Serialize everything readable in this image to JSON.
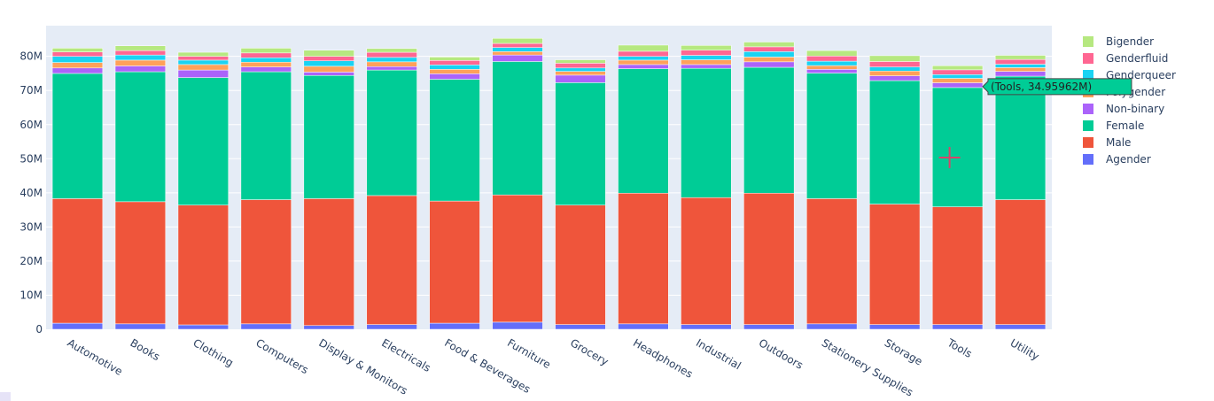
{
  "chart_data": {
    "type": "bar",
    "barmode": "stack",
    "title": "",
    "xlabel": "",
    "ylabel": "",
    "ylim": [
      0,
      89000000
    ],
    "y_ticks": [
      {
        "value": 0,
        "label": "0"
      },
      {
        "value": 10000000,
        "label": "10M"
      },
      {
        "value": 20000000,
        "label": "20M"
      },
      {
        "value": 30000000,
        "label": "30M"
      },
      {
        "value": 40000000,
        "label": "40M"
      },
      {
        "value": 50000000,
        "label": "50M"
      },
      {
        "value": 60000000,
        "label": "60M"
      },
      {
        "value": 70000000,
        "label": "70M"
      },
      {
        "value": 80000000,
        "label": "80M"
      }
    ],
    "categories": [
      "Automotive",
      "Books",
      "Clothing",
      "Computers",
      "Display & Monitors",
      "Electricals",
      "Food & Beverages",
      "Furniture",
      "Grocery",
      "Headphones",
      "Industrial",
      "Outdoors",
      "Stationery Supplies",
      "Storage",
      "Tools",
      "Utility"
    ],
    "series": [
      {
        "name": "Agender",
        "color": "#636efa",
        "values": [
          1800000,
          1600000,
          1300000,
          1600000,
          1100000,
          1400000,
          1800000,
          2100000,
          1400000,
          1600000,
          1400000,
          1400000,
          1600000,
          1400000,
          1400000,
          1400000
        ]
      },
      {
        "name": "Male",
        "color": "#ef553b",
        "values": [
          36500000,
          35800000,
          35100000,
          36400000,
          37200000,
          37800000,
          35800000,
          37300000,
          35000000,
          38300000,
          37200000,
          38500000,
          36700000,
          35300000,
          34500000,
          36600000
        ]
      },
      {
        "name": "Female",
        "color": "#00cc96",
        "values": [
          36700000,
          38100000,
          37400000,
          37500000,
          36100000,
          36800000,
          35700000,
          39100000,
          35900000,
          36500000,
          37900000,
          36900000,
          36800000,
          36200000,
          34959620,
          36200000
        ]
      },
      {
        "name": "Non-binary",
        "color": "#ab63fa",
        "values": [
          1600000,
          1700000,
          2200000,
          1400000,
          1000000,
          1000000,
          1600000,
          1900000,
          2200000,
          1200000,
          1100000,
          1600000,
          1100000,
          1400000,
          1400000,
          1400000
        ]
      },
      {
        "name": "Polygender",
        "color": "#ffa15a",
        "values": [
          1600000,
          1700000,
          1600000,
          1400000,
          1700000,
          1400000,
          1300000,
          1000000,
          1100000,
          1300000,
          1400000,
          1400000,
          1100000,
          1400000,
          1300000,
          1100000
        ]
      },
      {
        "name": "Genderqueer",
        "color": "#19d3f3",
        "values": [
          1800000,
          1500000,
          1300000,
          1300000,
          1600000,
          1300000,
          1300000,
          1200000,
          1000000,
          1100000,
          1300000,
          1600000,
          1300000,
          1200000,
          1100000,
          1000000
        ]
      },
      {
        "name": "Genderfluid",
        "color": "#ff6692",
        "values": [
          1300000,
          1300000,
          1100000,
          1400000,
          1300000,
          1500000,
          1300000,
          1200000,
          1400000,
          1500000,
          1500000,
          1400000,
          1500000,
          1600000,
          1400000,
          1400000
        ]
      },
      {
        "name": "Bigender",
        "color": "#b6e880",
        "values": [
          1100000,
          1400000,
          1200000,
          1400000,
          1800000,
          1100000,
          1000000,
          1500000,
          1000000,
          1800000,
          1400000,
          1400000,
          1600000,
          1700000,
          1200000,
          1200000
        ]
      }
    ],
    "legend": {
      "placement": "right",
      "items": [
        "Bigender",
        "Genderfluid",
        "Genderqueer",
        "Polygender",
        "Non-binary",
        "Female",
        "Male",
        "Agender"
      ]
    },
    "hover": {
      "category": "Tools",
      "series": "Female",
      "text": "(Tools, 34.95962M)",
      "label": "Female"
    }
  }
}
